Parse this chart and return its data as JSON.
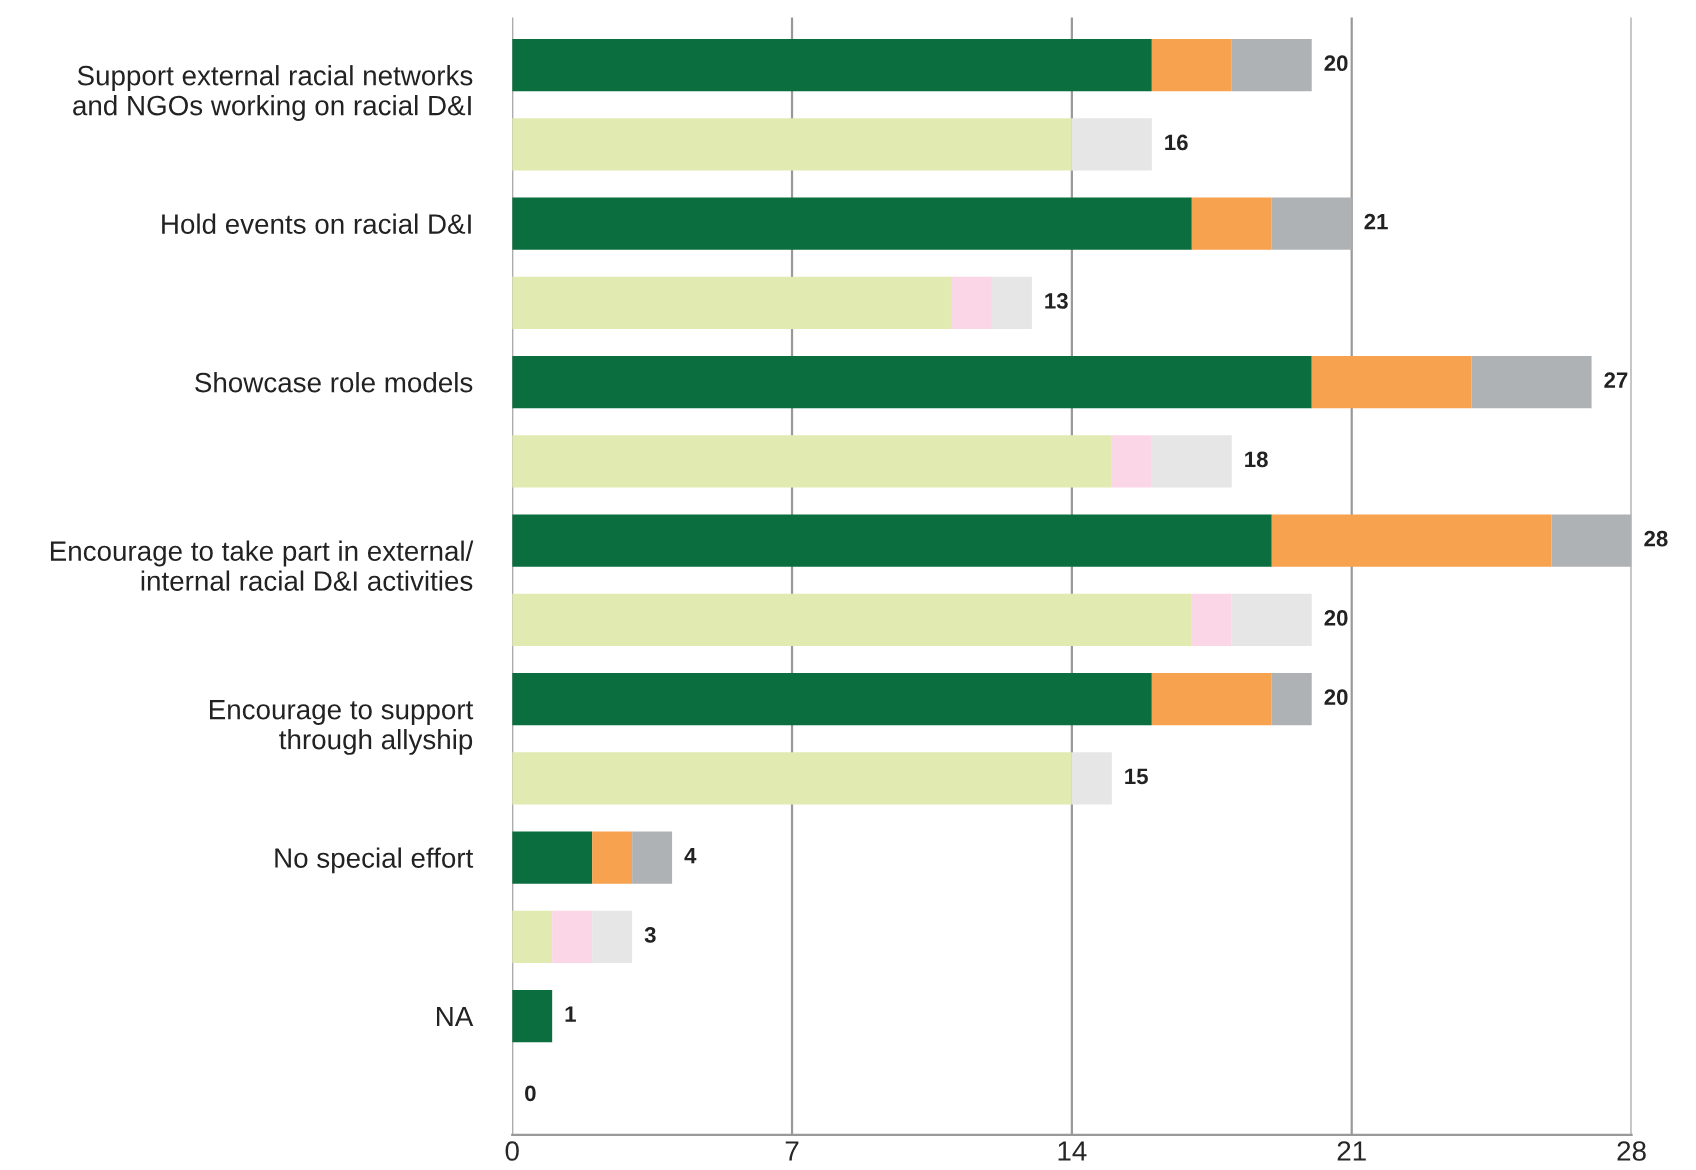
{
  "chart_data": {
    "type": "bar",
    "orientation": "horizontal",
    "stacked": true,
    "categories": [
      "Support external racial networks\nand NGOs working on racial D&I",
      null,
      "Hold events on racial D&I",
      null,
      "Showcase role models",
      null,
      "Encourage to take part in external/\ninternal racial D&I activities",
      null,
      "Encourage to support\nthrough allyship",
      null,
      "No special effort",
      null,
      "NA",
      null
    ],
    "series": [
      {
        "color": "#0b6e3f",
        "values": [
          16,
          null,
          17,
          null,
          20,
          null,
          19,
          null,
          16,
          null,
          2,
          null,
          1,
          null
        ]
      },
      {
        "color": "#f7a24f",
        "values": [
          2,
          null,
          2,
          null,
          4,
          null,
          7,
          null,
          3,
          null,
          1,
          null,
          null,
          null
        ]
      },
      {
        "color": "#afb2b5",
        "values": [
          2,
          null,
          2,
          null,
          3,
          null,
          2,
          null,
          1,
          null,
          1,
          null,
          null,
          null
        ]
      },
      {
        "color": "#e1eab1",
        "values": [
          null,
          14,
          null,
          11,
          null,
          15,
          null,
          17,
          null,
          14,
          null,
          1,
          null,
          0
        ]
      },
      {
        "color": "#fbd6e6",
        "values": [
          null,
          null,
          null,
          1,
          null,
          1,
          null,
          1,
          null,
          null,
          null,
          1,
          null,
          null
        ]
      },
      {
        "color": "#e6e6e7",
        "values": [
          null,
          2,
          null,
          1,
          null,
          2,
          null,
          2,
          null,
          1,
          null,
          1,
          null,
          null
        ]
      }
    ],
    "totals": [
      "20",
      "16",
      "21",
      "13",
      "27",
      "18",
      "28",
      "20",
      "20",
      "15",
      "4",
      "3",
      "1",
      "0"
    ],
    "xlim": [
      0,
      28
    ],
    "xticks": [
      0,
      7,
      14,
      21,
      28
    ],
    "grid": "x",
    "legend": false
  }
}
